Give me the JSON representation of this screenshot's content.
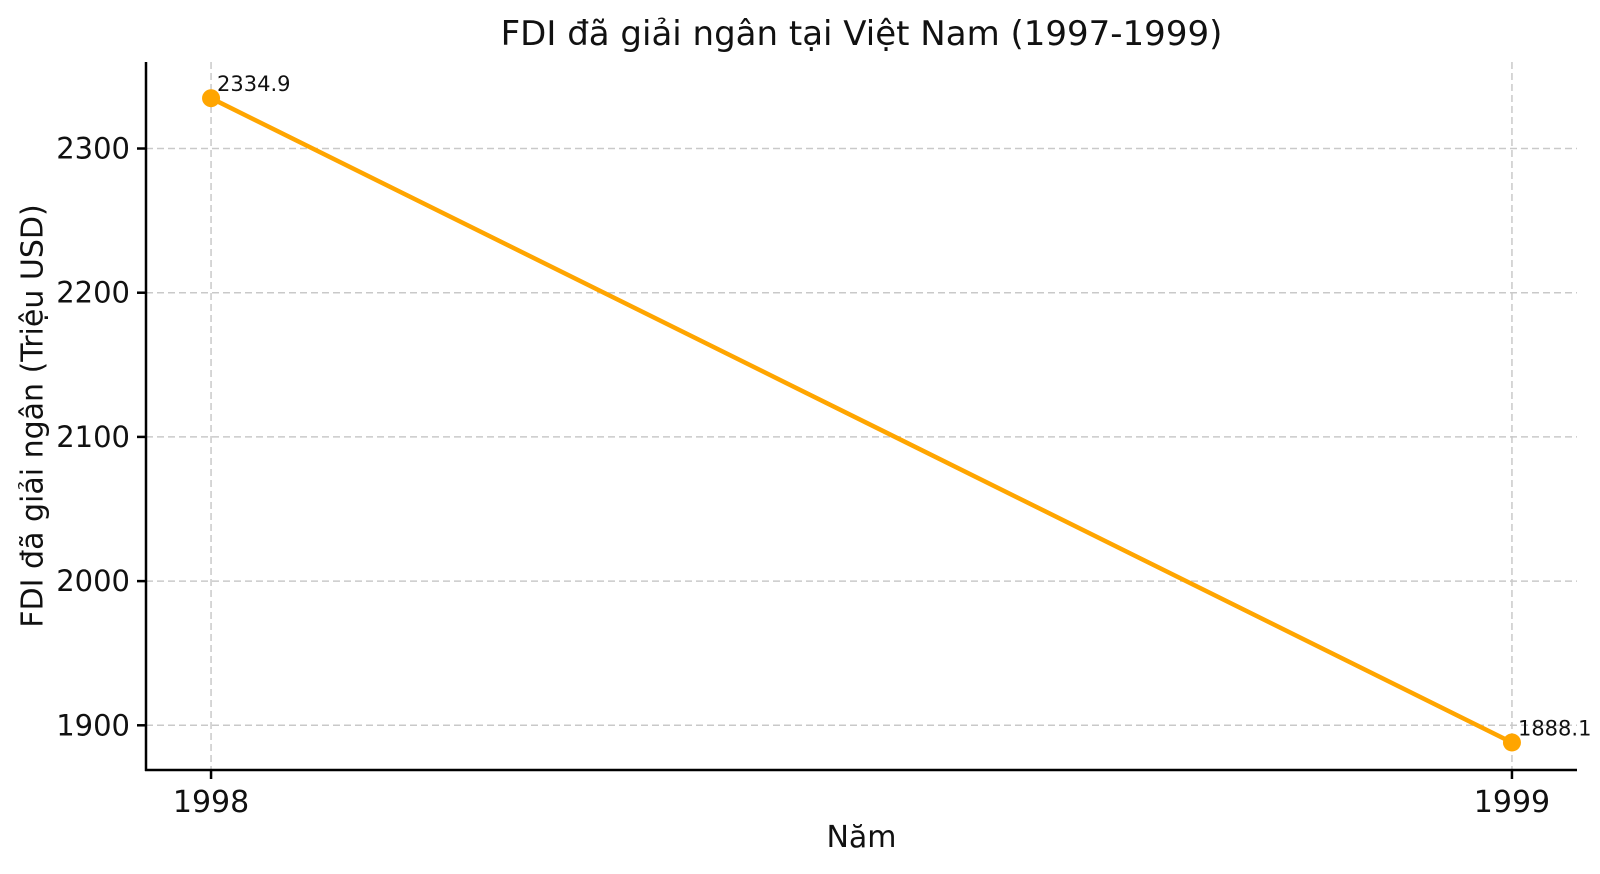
{
  "chart_data": {
    "type": "line",
    "title": "FDI đã giải ngân tại Việt Nam (1997-1999)",
    "xlabel": "Năm",
    "ylabel": "FDI đã giải ngân (Triệu USD)",
    "x": [
      1998,
      1999
    ],
    "series": [
      {
        "name": "FDI đã giải ngân",
        "values": [
          2334.9,
          1888.1
        ]
      }
    ],
    "point_labels": [
      "2334.9",
      "1888.1"
    ],
    "x_ticks": [
      1998,
      1999
    ],
    "y_ticks": [
      1900,
      2000,
      2100,
      2200,
      2300
    ],
    "xlim": [
      1997.95,
      1999.05
    ],
    "ylim": [
      1869,
      2360
    ],
    "grid": true,
    "grid_style": "dashed",
    "legend": "none",
    "colors": {
      "line": "#FFA500",
      "marker": "#FFA500",
      "grid": "#C9C9C9",
      "spine": "#000000",
      "text": "#111111",
      "background": "#FFFFFF"
    }
  }
}
